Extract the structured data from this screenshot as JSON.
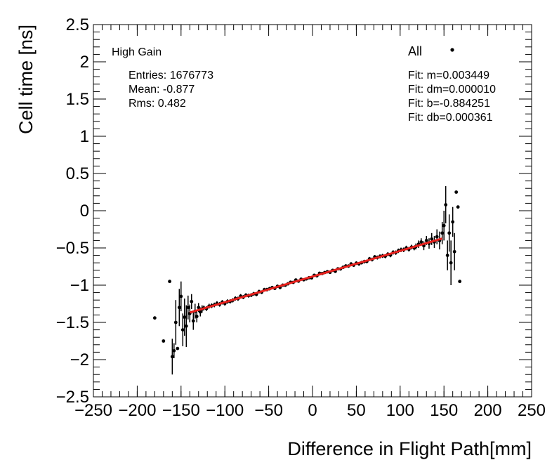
{
  "chart_data": {
    "type": "scatter",
    "title": "",
    "xlabel": "Difference in Flight Path[mm]",
    "ylabel": "Cell time [ns]",
    "xlim": [
      -250,
      250
    ],
    "ylim": [
      -2.5,
      2.5
    ],
    "x_ticks": [
      -250,
      -200,
      -150,
      -100,
      -50,
      0,
      50,
      100,
      150,
      200,
      250
    ],
    "x_tick_labels": [
      "−250",
      "−200",
      "−150",
      "−100",
      "−50",
      "0",
      "50",
      "100",
      "150",
      "200",
      "250"
    ],
    "y_ticks": [
      -2.5,
      -2,
      -1.5,
      -1,
      -0.5,
      0,
      0.5,
      1,
      1.5,
      2,
      2.5
    ],
    "y_tick_labels": [
      "−2.5",
      "−2",
      "−1.5",
      "−1",
      "−0.5",
      "0",
      "0.5",
      "1",
      "1.5",
      "2",
      "2.5"
    ],
    "grid": false,
    "legend_position": "top-right",
    "stats": {
      "label": "High Gain",
      "entries": "Entries: 1676773",
      "mean": "Mean: -0.877",
      "rms": "Rms: 0.482"
    },
    "legend": {
      "entry": "All",
      "fit_lines": [
        "Fit: m=0.003449",
        "Fit: dm=0.000010",
        "Fit: b=-0.884251",
        "Fit: db=0.000361"
      ]
    },
    "fit": {
      "m": 0.003449,
      "b": -0.884251,
      "x_range": [
        -140,
        148
      ],
      "color": "#e8201c"
    },
    "series": [
      {
        "x": [
          -180,
          -170,
          -163,
          -160,
          -158,
          -156,
          -154,
          -152,
          -150,
          -148,
          -146,
          -144,
          -142,
          -140,
          -138,
          -136,
          -134,
          -132,
          -130,
          -128,
          -126
        ],
        "y": [
          -1.44,
          -1.75,
          -0.95,
          -1.96,
          -1.88,
          -1.5,
          -1.85,
          -1.3,
          -1.15,
          -1.6,
          -1.43,
          -1.55,
          -1.3,
          -1.38,
          -1.22,
          -1.48,
          -1.35,
          -1.42,
          -1.3,
          -1.36,
          -1.32
        ],
        "err": [
          0,
          0,
          0,
          0.24,
          0.1,
          0.3,
          0,
          0.25,
          0.2,
          0.22,
          0.25,
          0.28,
          0.16,
          0.12,
          0.1,
          0.12,
          0.1,
          0.08,
          0.06,
          0.06,
          0.05
        ]
      },
      {
        "x": [
          118,
          121,
          124,
          127,
          130,
          133,
          136,
          139,
          142,
          145,
          148,
          150,
          152,
          154,
          156,
          158,
          160,
          162,
          164,
          166,
          168
        ],
        "y": [
          -0.48,
          -0.45,
          -0.42,
          -0.47,
          -0.4,
          -0.44,
          -0.38,
          -0.42,
          -0.35,
          -0.4,
          -0.3,
          -0.2,
          0.08,
          -0.6,
          -0.3,
          -0.7,
          -0.15,
          -0.55,
          0.25,
          0.05,
          -0.95
        ],
        "err": [
          0.04,
          0.05,
          0.05,
          0.06,
          0.06,
          0.07,
          0.08,
          0.08,
          0.1,
          0.12,
          0.15,
          0.2,
          0.25,
          0.2,
          0.25,
          0.3,
          0.2,
          0.25,
          0,
          0,
          0
        ]
      }
    ]
  }
}
